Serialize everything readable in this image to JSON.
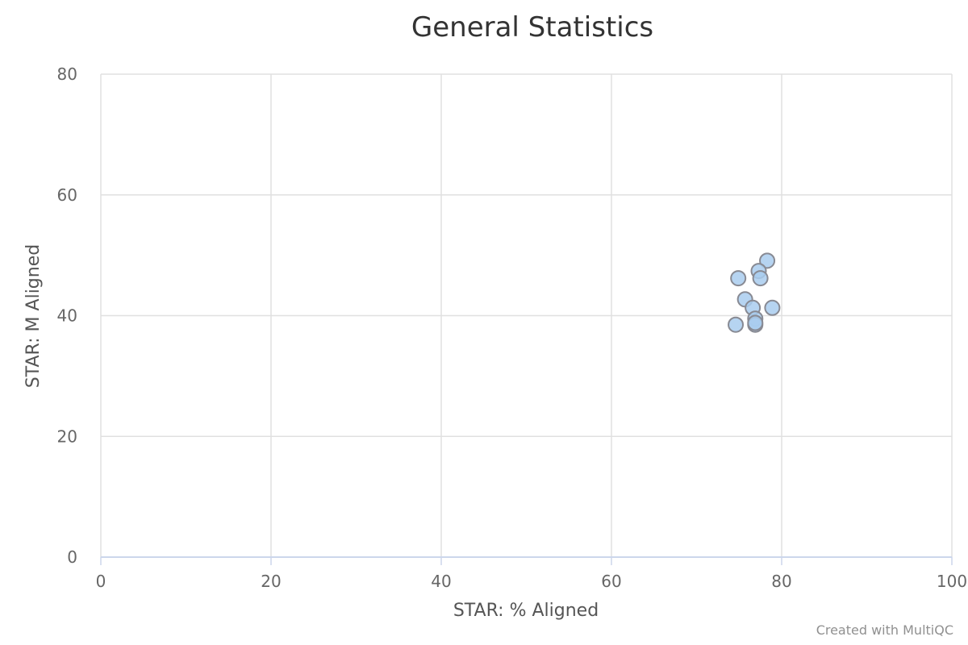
{
  "chart_data": {
    "type": "scatter",
    "title": "General Statistics",
    "xlabel": "STAR: % Aligned",
    "ylabel": "STAR: M Aligned",
    "xlim": [
      0,
      100
    ],
    "ylim": [
      0,
      80
    ],
    "xticks": [
      0,
      20,
      40,
      60,
      80,
      100
    ],
    "yticks": [
      0,
      20,
      40,
      60,
      80
    ],
    "grid": true,
    "series": [
      {
        "points": [
          {
            "x": 78.3,
            "y": 49.1
          },
          {
            "x": 77.3,
            "y": 47.4
          },
          {
            "x": 74.9,
            "y": 46.2
          },
          {
            "x": 77.5,
            "y": 46.2
          },
          {
            "x": 75.7,
            "y": 42.7
          },
          {
            "x": 76.6,
            "y": 41.3
          },
          {
            "x": 78.9,
            "y": 41.3
          },
          {
            "x": 76.9,
            "y": 39.5
          },
          {
            "x": 74.6,
            "y": 38.5
          },
          {
            "x": 76.9,
            "y": 38.5
          },
          {
            "x": 76.9,
            "y": 38.8
          }
        ],
        "color": "#a9cdef"
      }
    ]
  },
  "credit": "Created with MultiQC"
}
